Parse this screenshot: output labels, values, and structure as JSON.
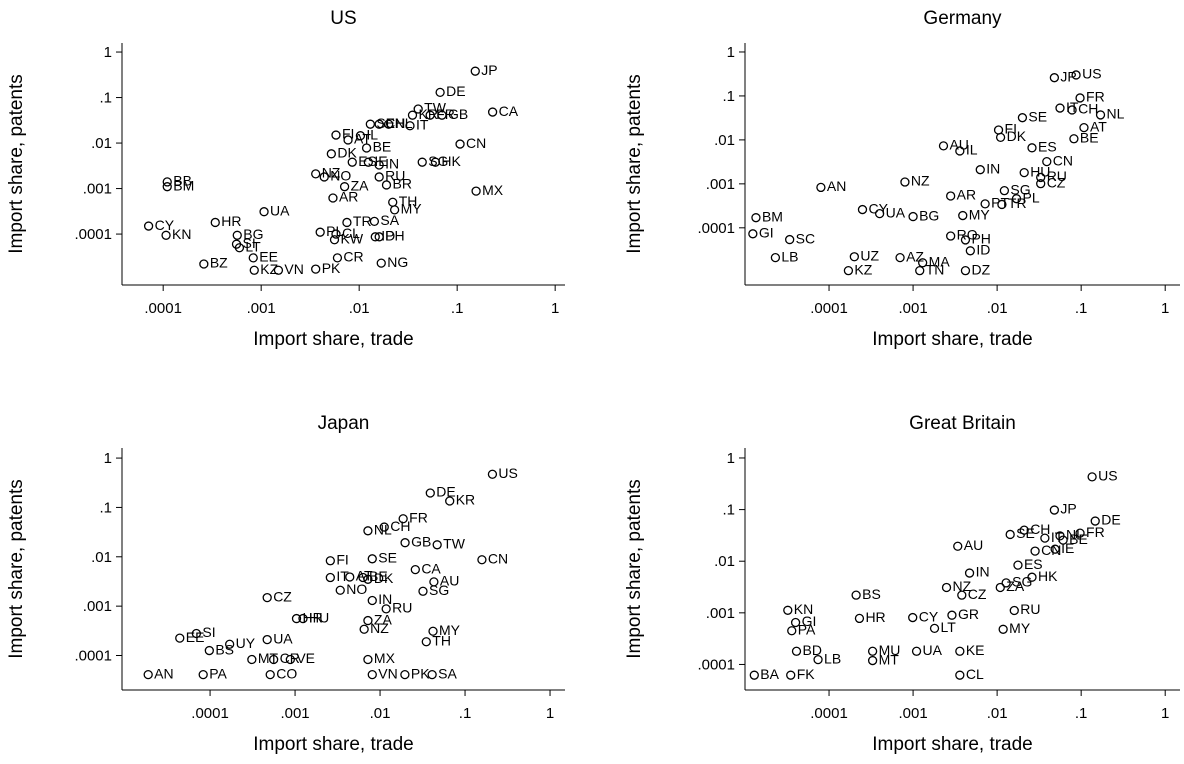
{
  "chart_data": [
    {
      "type": "scatter",
      "title": "US",
      "x_label": "Import share, trade",
      "y_label": "Import share, patents",
      "log_x": true,
      "log_y": true,
      "color": "#000000",
      "xlim": [
        3.8e-05,
        1.26
      ],
      "ylim": [
        7.6e-06,
        1.58
      ],
      "xticks": [
        {
          "value": 0.0001,
          "label": ".0001"
        },
        {
          "value": 0.001,
          "label": ".001"
        },
        {
          "value": 0.01,
          "label": ".01"
        },
        {
          "value": 0.1,
          "label": ".1"
        },
        1
      ],
      "yticks": [
        {
          "value": 0.0001,
          "label": ".0001"
        },
        {
          "value": 0.001,
          "label": ".001"
        },
        {
          "value": 0.01,
          "label": ".01"
        },
        {
          "value": 0.1,
          "label": ".1"
        },
        1
      ],
      "point_labels": [
        "JP",
        "DE",
        "CA",
        "TW",
        "GB",
        "FR",
        "KR",
        "IT",
        "CH",
        "NL",
        "SE",
        "FI",
        "IL",
        "AT",
        "CN",
        "DK",
        "BE",
        "HK",
        "SG",
        "IN",
        "IE",
        "ES",
        "NZ",
        "NO",
        "ZA",
        "BR",
        "RU",
        "MX",
        "AR",
        "BB",
        "BM",
        "CY",
        "KN",
        "TH",
        "MY",
        "PH",
        "ID",
        "SA",
        "TR",
        "PL",
        "UA",
        "HR",
        "BG",
        "KW",
        "CL",
        "EE",
        "CR",
        "NG",
        "BZ",
        "PK",
        "KZ",
        "VN",
        "LT",
        "SI"
      ],
      "x": [
        0.153,
        0.067,
        0.23,
        0.04,
        0.07,
        0.053,
        0.035,
        0.033,
        0.016,
        0.02,
        0.013,
        0.0058,
        0.0103,
        0.0077,
        0.107,
        0.0052,
        0.0119,
        0.06,
        0.044,
        0.016,
        0.0124,
        0.0085,
        0.0036,
        0.0044,
        0.0071,
        0.019,
        0.016,
        0.156,
        0.0054,
        0.00011,
        0.00011,
        7.1e-05,
        0.000107,
        0.022,
        0.023,
        0.016,
        0.0146,
        0.0143,
        0.0075,
        0.004,
        0.00107,
        0.00034,
        0.00057,
        0.0056,
        0.0058,
        0.00083,
        0.006,
        0.0168,
        0.00026,
        0.0036,
        0.00085,
        0.0015,
        0.0006,
        0.00056
      ],
      "values": [
        0.38,
        0.13,
        0.048,
        0.056,
        0.041,
        0.041,
        0.041,
        0.024,
        0.026,
        0.026,
        0.026,
        0.015,
        0.0145,
        0.0117,
        0.0095,
        0.0058,
        0.0078,
        0.0038,
        0.0038,
        0.0033,
        0.0038,
        0.0038,
        0.0021,
        0.0018,
        0.0011,
        0.0012,
        0.0018,
        0.00088,
        0.00062,
        0.0014,
        0.0011,
        0.00015,
        9.4e-05,
        0.0005,
        0.00034,
        8.7e-05,
        8.7e-05,
        0.00019,
        0.00018,
        0.00011,
        0.00031,
        0.00018,
        9.4e-05,
        7.5e-05,
        0.0001,
        3e-05,
        3e-05,
        2.3e-05,
        2.2e-05,
        1.7e-05,
        1.6e-05,
        1.6e-05,
        5e-05,
        6e-05
      ]
    },
    {
      "type": "scatter",
      "title": "Germany",
      "x_label": "Import share, trade",
      "y_label": "Import share, patents",
      "log_x": true,
      "log_y": true,
      "color": "#000000",
      "xlim": [
        1e-05,
        1.5
      ],
      "ylim": [
        5e-06,
        1.6
      ],
      "xticks": [
        {
          "value": 0.0001,
          "label": ".0001"
        },
        {
          "value": 0.001,
          "label": ".001"
        },
        {
          "value": 0.01,
          "label": ".01"
        },
        {
          "value": 0.1,
          "label": ".1"
        },
        1
      ],
      "yticks": [
        {
          "value": 0.0001,
          "label": ".0001"
        },
        {
          "value": 0.001,
          "label": ".001"
        },
        {
          "value": 0.01,
          "label": ".01"
        },
        {
          "value": 0.1,
          "label": ".1"
        },
        1
      ],
      "point_labels": [
        "US",
        "JP",
        "FR",
        "NL",
        "CH",
        "IT",
        "SE",
        "AT",
        "BE",
        "DK",
        "FI",
        "ES",
        "AU",
        "IL",
        "CN",
        "IN",
        "HU",
        "CZ",
        "RU",
        "PL",
        "NZ",
        "AN",
        "AR",
        "MY",
        "BM",
        "GI",
        "SG",
        "TR",
        "PT",
        "CY",
        "SC",
        "BG",
        "UA",
        "RO",
        "PH",
        "ID",
        "TN",
        "DZ",
        "UZ",
        "AZ",
        "MA",
        "LB",
        "KZ"
      ],
      "x": [
        0.087,
        0.048,
        0.097,
        0.17,
        0.078,
        0.056,
        0.02,
        0.108,
        0.082,
        0.011,
        0.0104,
        0.026,
        0.0023,
        0.0036,
        0.039,
        0.0063,
        0.021,
        0.033,
        0.033,
        0.017,
        0.0008,
        8e-05,
        0.0028,
        0.0039,
        1.35e-05,
        1.24e-05,
        0.0122,
        0.0114,
        0.0072,
        0.00025,
        3.4e-05,
        0.001,
        0.0004,
        0.0028,
        0.0042,
        0.0048,
        0.0012,
        0.0042,
        0.0002,
        0.0007,
        0.0013,
        2.3e-05,
        0.00017
      ],
      "values": [
        0.3,
        0.26,
        0.09,
        0.037,
        0.048,
        0.053,
        0.032,
        0.019,
        0.0106,
        0.0114,
        0.0168,
        0.0066,
        0.0073,
        0.0056,
        0.0032,
        0.0021,
        0.0018,
        0.00101,
        0.0014,
        0.00046,
        0.0011,
        0.00083,
        0.00053,
        0.00019,
        0.00017,
        7.3e-05,
        0.0007,
        0.00034,
        0.00035,
        0.00026,
        5.4e-05,
        0.00018,
        0.00021,
        6.5e-05,
        5.3e-05,
        3e-05,
        1.06e-05,
        1.06e-05,
        2.2e-05,
        2.1e-05,
        1.6e-05,
        2.1e-05,
        1.06e-05
      ]
    },
    {
      "type": "scatter",
      "title": "Japan",
      "x_label": "Import share, trade",
      "y_label": "Import share, patents",
      "log_x": true,
      "log_y": true,
      "color": "#000000",
      "xlim": [
        9.2e-06,
        1.5
      ],
      "ylim": [
        2e-05,
        1.6
      ],
      "xticks": [
        {
          "value": 0.0001,
          "label": ".0001"
        },
        {
          "value": 0.001,
          "label": ".001"
        },
        {
          "value": 0.01,
          "label": ".01"
        },
        {
          "value": 0.1,
          "label": ".1"
        },
        1
      ],
      "yticks": [
        {
          "value": 0.0001,
          "label": ".0001"
        },
        {
          "value": 0.001,
          "label": ".001"
        },
        {
          "value": 0.01,
          "label": ".01"
        },
        {
          "value": 0.1,
          "label": ".1"
        },
        1
      ],
      "point_labels": [
        "US",
        "DE",
        "KR",
        "FR",
        "NL",
        "CH",
        "GB",
        "TW",
        "CN",
        "FI",
        "SE",
        "CA",
        "IT",
        "AT",
        "BE",
        "AU",
        "DK",
        "NO",
        "SG",
        "CZ",
        "IN",
        "RU",
        "HU",
        "HR",
        "ZA",
        "NZ",
        "UA",
        "SI",
        "EE",
        "BS",
        "UY",
        "MY",
        "TH",
        "MX",
        "MT",
        "CR",
        "VE",
        "AN",
        "PA",
        "CO",
        "VN",
        "PK",
        "SA"
      ],
      "x": [
        0.21,
        0.039,
        0.066,
        0.0187,
        0.0072,
        0.0112,
        0.0197,
        0.047,
        0.158,
        0.0026,
        0.0081,
        0.026,
        0.0026,
        0.0044,
        0.0063,
        0.043,
        0.0072,
        0.0034,
        0.032,
        0.00047,
        0.0081,
        0.0118,
        0.00124,
        0.00104,
        0.0072,
        0.0065,
        0.00047,
        6.9e-05,
        4.4e-05,
        9.8e-05,
        0.00017,
        0.042,
        0.035,
        0.0072,
        0.00031,
        0.00056,
        0.00088,
        1.87e-05,
        8.3e-05,
        0.00051,
        0.0081,
        0.0196,
        0.041
      ],
      "values": [
        0.47,
        0.196,
        0.135,
        0.059,
        0.0336,
        0.04,
        0.0193,
        0.0175,
        0.0087,
        0.0083,
        0.0091,
        0.0055,
        0.0038,
        0.0039,
        0.0038,
        0.0031,
        0.0035,
        0.0021,
        0.002,
        0.00149,
        0.0013,
        0.00088,
        0.00056,
        0.00056,
        0.00051,
        0.00034,
        0.00021,
        0.000279,
        0.000225,
        0.000126,
        0.000169,
        0.00031,
        0.00019,
        8.3e-05,
        8.3e-05,
        8.3e-05,
        8.3e-05,
        4.1e-05,
        4.1e-05,
        4.1e-05,
        4.1e-05,
        4.1e-05,
        4.1e-05
      ]
    },
    {
      "type": "scatter",
      "title": "Great Britain",
      "x_label": "Import share, trade",
      "y_label": "Import share, patents",
      "log_x": true,
      "log_y": true,
      "color": "#000000",
      "xlim": [
        1e-05,
        1.5
      ],
      "ylim": [
        3.2e-05,
        1.56
      ],
      "xticks": [
        {
          "value": 0.0001,
          "label": ".0001"
        },
        {
          "value": 0.001,
          "label": ".001"
        },
        {
          "value": 0.01,
          "label": ".01"
        },
        {
          "value": 0.1,
          "label": ".1"
        },
        1
      ],
      "yticks": [
        {
          "value": 0.0001,
          "label": ".0001"
        },
        {
          "value": 0.001,
          "label": ".001"
        },
        {
          "value": 0.01,
          "label": ".01"
        },
        {
          "value": 0.1,
          "label": ".1"
        },
        1
      ],
      "point_labels": [
        "US",
        "JP",
        "DE",
        "FR",
        "NL",
        "IT",
        "CH",
        "SE",
        "BE",
        "IE",
        "AU",
        "CN",
        "ES",
        "IN",
        "HK",
        "SG",
        "ZA",
        "NZ",
        "CZ",
        "BS",
        "RU",
        "GR",
        "KN",
        "HR",
        "CY",
        "GI",
        "PA",
        "LT",
        "MY",
        "BD",
        "LB",
        "MU",
        "UA",
        "KE",
        "BA",
        "FK",
        "MT",
        "CL"
      ],
      "x": [
        0.135,
        0.048,
        0.147,
        0.097,
        0.056,
        0.037,
        0.021,
        0.0143,
        0.061,
        0.049,
        0.0034,
        0.0283,
        0.0177,
        0.0047,
        0.026,
        0.0128,
        0.0109,
        0.0025,
        0.0038,
        0.00021,
        0.016,
        0.0029,
        3.23e-05,
        0.00023,
        0.00099,
        4e-05,
        3.6e-05,
        0.0018,
        0.0118,
        4.1e-05,
        7.4e-05,
        0.00033,
        0.0011,
        0.0036,
        1.29e-05,
        3.5e-05,
        0.00033,
        0.0036
      ],
      "values": [
        0.43,
        0.098,
        0.06,
        0.035,
        0.031,
        0.028,
        0.04,
        0.033,
        0.0256,
        0.0171,
        0.0195,
        0.0157,
        0.0084,
        0.0059,
        0.0049,
        0.0038,
        0.0031,
        0.0031,
        0.0022,
        0.0022,
        0.00111,
        0.0009,
        0.00112,
        0.00078,
        0.00081,
        0.00065,
        0.00045,
        0.0005,
        0.00048,
        0.00018,
        0.000124,
        0.00018,
        0.00018,
        0.00018,
        6.2e-05,
        6.2e-05,
        0.000119,
        6.2e-05
      ]
    }
  ]
}
